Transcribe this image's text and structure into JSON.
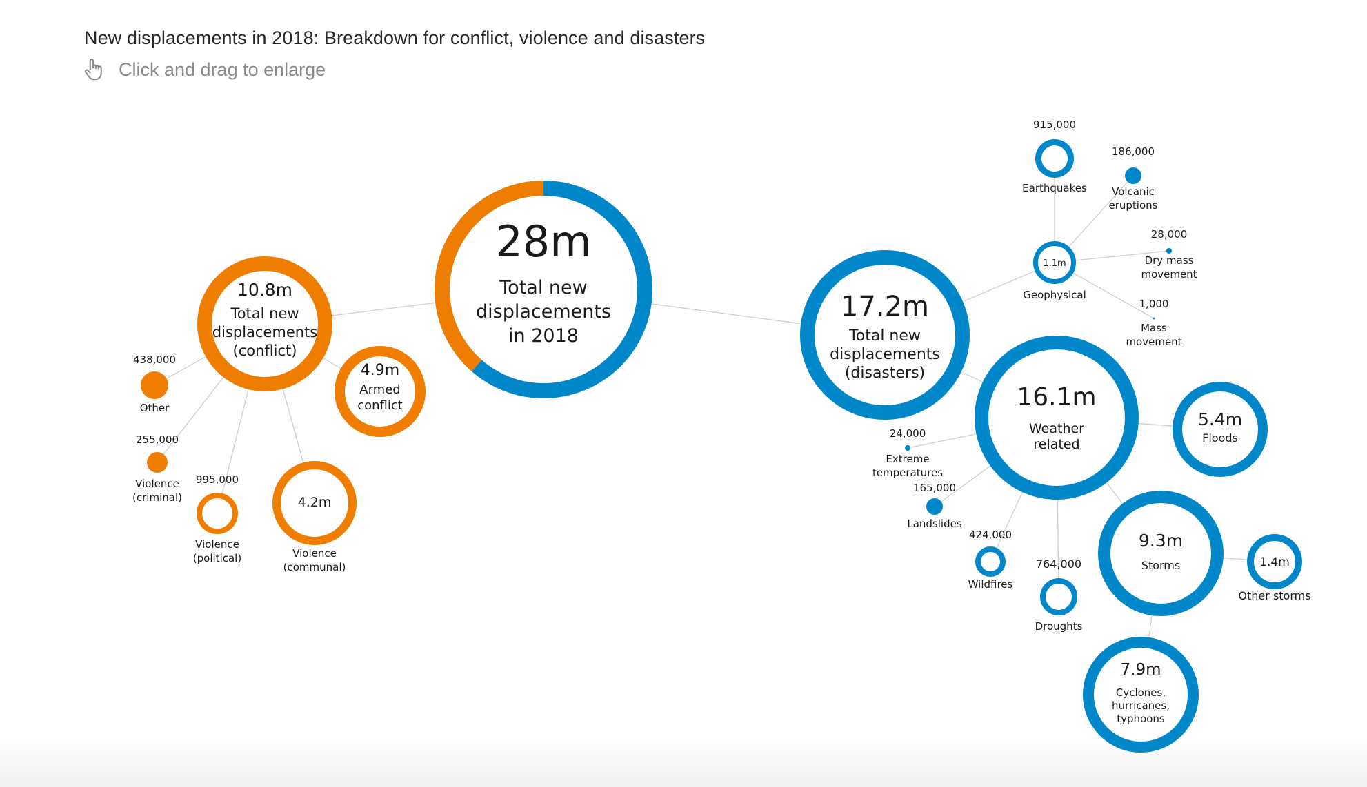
{
  "title": "New displacements in 2018: Breakdown for conflict, violence and disasters",
  "hint": {
    "text": "Click and drag to enlarge",
    "icon": "hand-pointer-icon"
  },
  "colors": {
    "conflict": "#ef7d00",
    "disasters": "#0087c9",
    "line": "#cfcfcf",
    "text": "#1a1a1a"
  },
  "nodes": [
    {
      "id": "total",
      "value_label": "28m",
      "label": "Total new\ndisplacements\nin 2018",
      "color": "split",
      "conflict_share": 0.3857
    },
    {
      "id": "conflict",
      "value_label": "10.8m",
      "label": "Total new\ndisplacements\n(conflict)",
      "color": "conflict"
    },
    {
      "id": "armed",
      "value_label": "4.9m",
      "label": "Armed\nconflict",
      "color": "conflict"
    },
    {
      "id": "other",
      "value_label": "438,000",
      "label": "Other",
      "color": "conflict"
    },
    {
      "id": "vcriminal",
      "value_label": "255,000",
      "label": "Violence\n(criminal)",
      "color": "conflict"
    },
    {
      "id": "vpolitical",
      "value_label": "995,000",
      "label": "Violence\n(political)",
      "color": "conflict"
    },
    {
      "id": "vcommunal",
      "value_label": "4.2m",
      "label": "Violence\n(communal)",
      "color": "conflict"
    },
    {
      "id": "disasters",
      "value_label": "17.2m",
      "label": "Total new\ndisplacements\n(disasters)",
      "color": "disasters"
    },
    {
      "id": "geophysical",
      "value_label": "1.1m",
      "label": "Geophysical",
      "color": "disasters"
    },
    {
      "id": "earthquakes",
      "value_label": "915,000",
      "label": "Earthquakes",
      "color": "disasters"
    },
    {
      "id": "volcanic",
      "value_label": "186,000",
      "label": "Volcanic\neruptions",
      "color": "disasters"
    },
    {
      "id": "drymass",
      "value_label": "28,000",
      "label": "Dry mass\nmovement",
      "color": "disasters"
    },
    {
      "id": "mass",
      "value_label": "1,000",
      "label": "Mass\nmovement",
      "color": "disasters"
    },
    {
      "id": "weather",
      "value_label": "16.1m",
      "label": "Weather\nrelated",
      "color": "disasters"
    },
    {
      "id": "floods",
      "value_label": "5.4m",
      "label": "Floods",
      "color": "disasters"
    },
    {
      "id": "storms",
      "value_label": "9.3m",
      "label": "Storms",
      "color": "disasters"
    },
    {
      "id": "otherstorms",
      "value_label": "1.4m",
      "label": "Other storms",
      "color": "disasters"
    },
    {
      "id": "cyclones",
      "value_label": "7.9m",
      "label": "Cyclones,\nhurricanes,\ntyphoons",
      "color": "disasters"
    },
    {
      "id": "droughts",
      "value_label": "764,000",
      "label": "Droughts",
      "color": "disasters"
    },
    {
      "id": "wildfires",
      "value_label": "424,000",
      "label": "Wildfires",
      "color": "disasters"
    },
    {
      "id": "landslides",
      "value_label": "165,000",
      "label": "Landslides",
      "color": "disasters"
    },
    {
      "id": "extreme",
      "value_label": "24,000",
      "label": "Extreme\ntemperatures",
      "color": "disasters"
    }
  ],
  "links": [
    [
      "total",
      "conflict"
    ],
    [
      "total",
      "disasters"
    ],
    [
      "conflict",
      "armed"
    ],
    [
      "conflict",
      "other"
    ],
    [
      "conflict",
      "vcriminal"
    ],
    [
      "conflict",
      "vpolitical"
    ],
    [
      "conflict",
      "vcommunal"
    ],
    [
      "disasters",
      "geophysical"
    ],
    [
      "disasters",
      "weather"
    ],
    [
      "geophysical",
      "earthquakes"
    ],
    [
      "geophysical",
      "volcanic"
    ],
    [
      "geophysical",
      "drymass"
    ],
    [
      "geophysical",
      "mass"
    ],
    [
      "weather",
      "floods"
    ],
    [
      "weather",
      "storms"
    ],
    [
      "weather",
      "droughts"
    ],
    [
      "weather",
      "wildfires"
    ],
    [
      "weather",
      "landslides"
    ],
    [
      "weather",
      "extreme"
    ],
    [
      "storms",
      "otherstorms"
    ],
    [
      "storms",
      "cyclones"
    ]
  ]
}
